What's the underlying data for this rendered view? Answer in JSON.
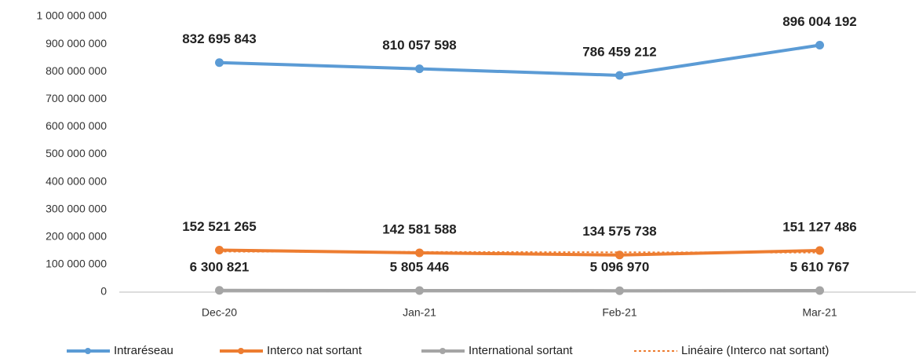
{
  "chart_data": {
    "type": "line",
    "categories": [
      "Dec-20",
      "Jan-21",
      "Feb-21",
      "Mar-21"
    ],
    "ylim": [
      0,
      1000000000
    ],
    "yticks": [
      0,
      {
        "value": 100000000,
        "label": "100 000 000"
      },
      {
        "value": 200000000,
        "label": "200 000 000"
      },
      {
        "value": 300000000,
        "label": "300 000 000"
      },
      {
        "value": 400000000,
        "label": "400 000 000"
      },
      {
        "value": 500000000,
        "label": "500 000 000"
      },
      {
        "value": 600000000,
        "label": "600 000 000"
      },
      {
        "value": 700000000,
        "label": "700 000 000"
      },
      {
        "value": 800000000,
        "label": "800 000 000"
      },
      {
        "value": 900000000,
        "label": "900 000 000"
      },
      {
        "value": 1000000000,
        "label": "1 000 000 000"
      }
    ],
    "grid": false,
    "legend": "bottom",
    "series": [
      {
        "name": "Intraréseau",
        "color": "#5b9bd5",
        "values": [
          832695843,
          810057598,
          786459212,
          896004192
        ],
        "value_labels": [
          "832 695 843",
          "810 057 598",
          "786 459 212",
          "896 004 192"
        ]
      },
      {
        "name": "Interco nat sortant",
        "color": "#ed7d31",
        "values": [
          152521265,
          142581588,
          134575738,
          151127486
        ],
        "value_labels": [
          "152 521 265",
          "142 581 588",
          "134 575 738",
          "151 127 486"
        ]
      },
      {
        "name": "International sortant",
        "color": "#a5a5a5",
        "values": [
          6300821,
          5805446,
          5096970,
          5610767
        ],
        "value_labels": [
          "6 300 821",
          "5 805 446",
          "5 096 970",
          "5 610 767"
        ]
      },
      {
        "name": "Linéaire (Interco nat sortant)",
        "color": "#ed7d31",
        "dashed": true,
        "values": [
          147000000,
          145800000,
          144600000,
          143400000
        ]
      }
    ]
  }
}
